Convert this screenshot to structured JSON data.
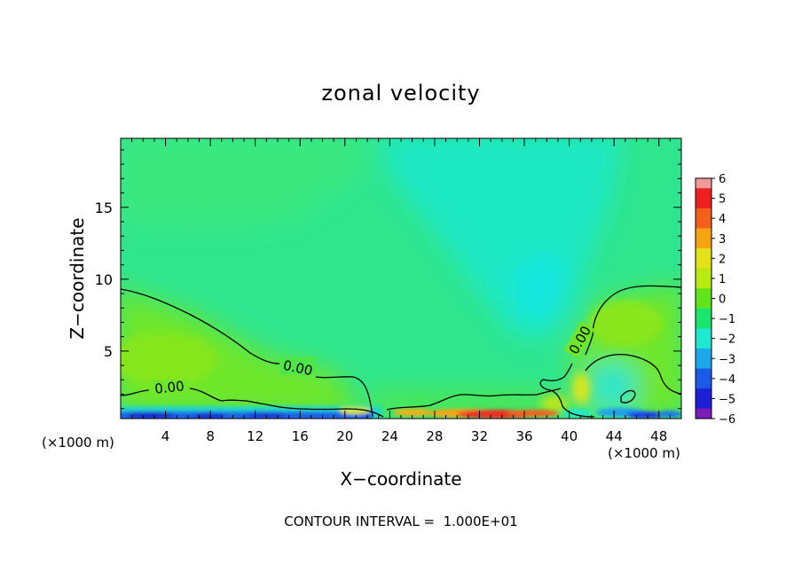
{
  "chart_data": {
    "type": "heatmap",
    "title": "zonal velocity",
    "xlabel": "X−coordinate",
    "ylabel": "Z−coordinate",
    "x_unit_left": "(×1000 m)",
    "x_unit_right": "(×1000 m)",
    "xlim": [
      0,
      50
    ],
    "ylim": [
      0.3,
      19.8
    ],
    "x_ticks": [
      "4",
      "8",
      "12",
      "16",
      "20",
      "24",
      "28",
      "32",
      "36",
      "40",
      "44",
      "48"
    ],
    "y_ticks": [
      "5",
      "10",
      "15"
    ],
    "colorbar": {
      "labels": [
        "6",
        "5",
        "4",
        "3",
        "2",
        "1",
        "0",
        "−1",
        "−2",
        "−3",
        "−4",
        "−5",
        "−6"
      ],
      "colors": [
        "#f19a9a",
        "#ee2020",
        "#f45f1a",
        "#f6a412",
        "#e4e21a",
        "#b8ea12",
        "#5ee61a",
        "#1ae66e",
        "#1ee8d0",
        "#1aa8ea",
        "#1a5ae6",
        "#1e1ed6",
        "#7a1ab8"
      ]
    },
    "contour_label": "0.00",
    "contour_interval_text": "CONTOUR INTERVAL =  1.000E+01",
    "grid": false
  }
}
